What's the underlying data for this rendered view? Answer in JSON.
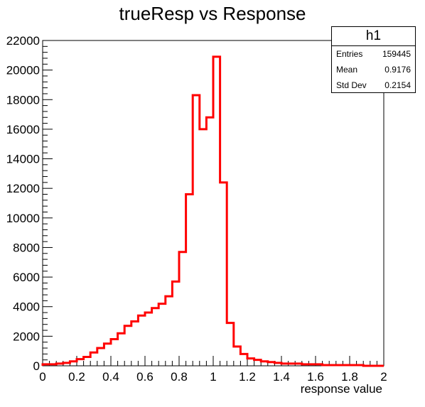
{
  "chart_data": {
    "type": "bar",
    "title": "trueResp vs Response",
    "xlabel": "response value",
    "ylabel": "",
    "xlim": [
      0,
      2
    ],
    "ylim": [
      0,
      22000
    ],
    "x_ticks": [
      "0",
      "0.2",
      "0.4",
      "0.6",
      "0.8",
      "1",
      "1.2",
      "1.4",
      "1.6",
      "1.8",
      "2"
    ],
    "y_ticks": [
      "0",
      "2000",
      "4000",
      "6000",
      "8000",
      "10000",
      "12000",
      "14000",
      "16000",
      "18000",
      "20000",
      "22000"
    ],
    "bin_width": 0.04,
    "series": [
      {
        "color": "#ff0000",
        "values": [
          100,
          100,
          150,
          200,
          300,
          450,
          600,
          900,
          1200,
          1500,
          1800,
          2200,
          2700,
          3000,
          3400,
          3600,
          3900,
          4200,
          4700,
          5700,
          7700,
          11600,
          18300,
          16000,
          16800,
          20900,
          12400,
          2900,
          1300,
          800,
          500,
          400,
          300,
          250,
          200,
          150,
          150,
          150,
          100,
          100,
          100,
          50,
          50,
          50,
          50,
          50,
          50,
          0,
          0,
          0
        ]
      }
    ],
    "stats": {
      "name": "h1",
      "rows": [
        {
          "label": "Entries",
          "value": "159445"
        },
        {
          "label": "Mean",
          "value": "0.9176"
        },
        {
          "label": "Std Dev",
          "value": "0.2154"
        }
      ]
    }
  }
}
